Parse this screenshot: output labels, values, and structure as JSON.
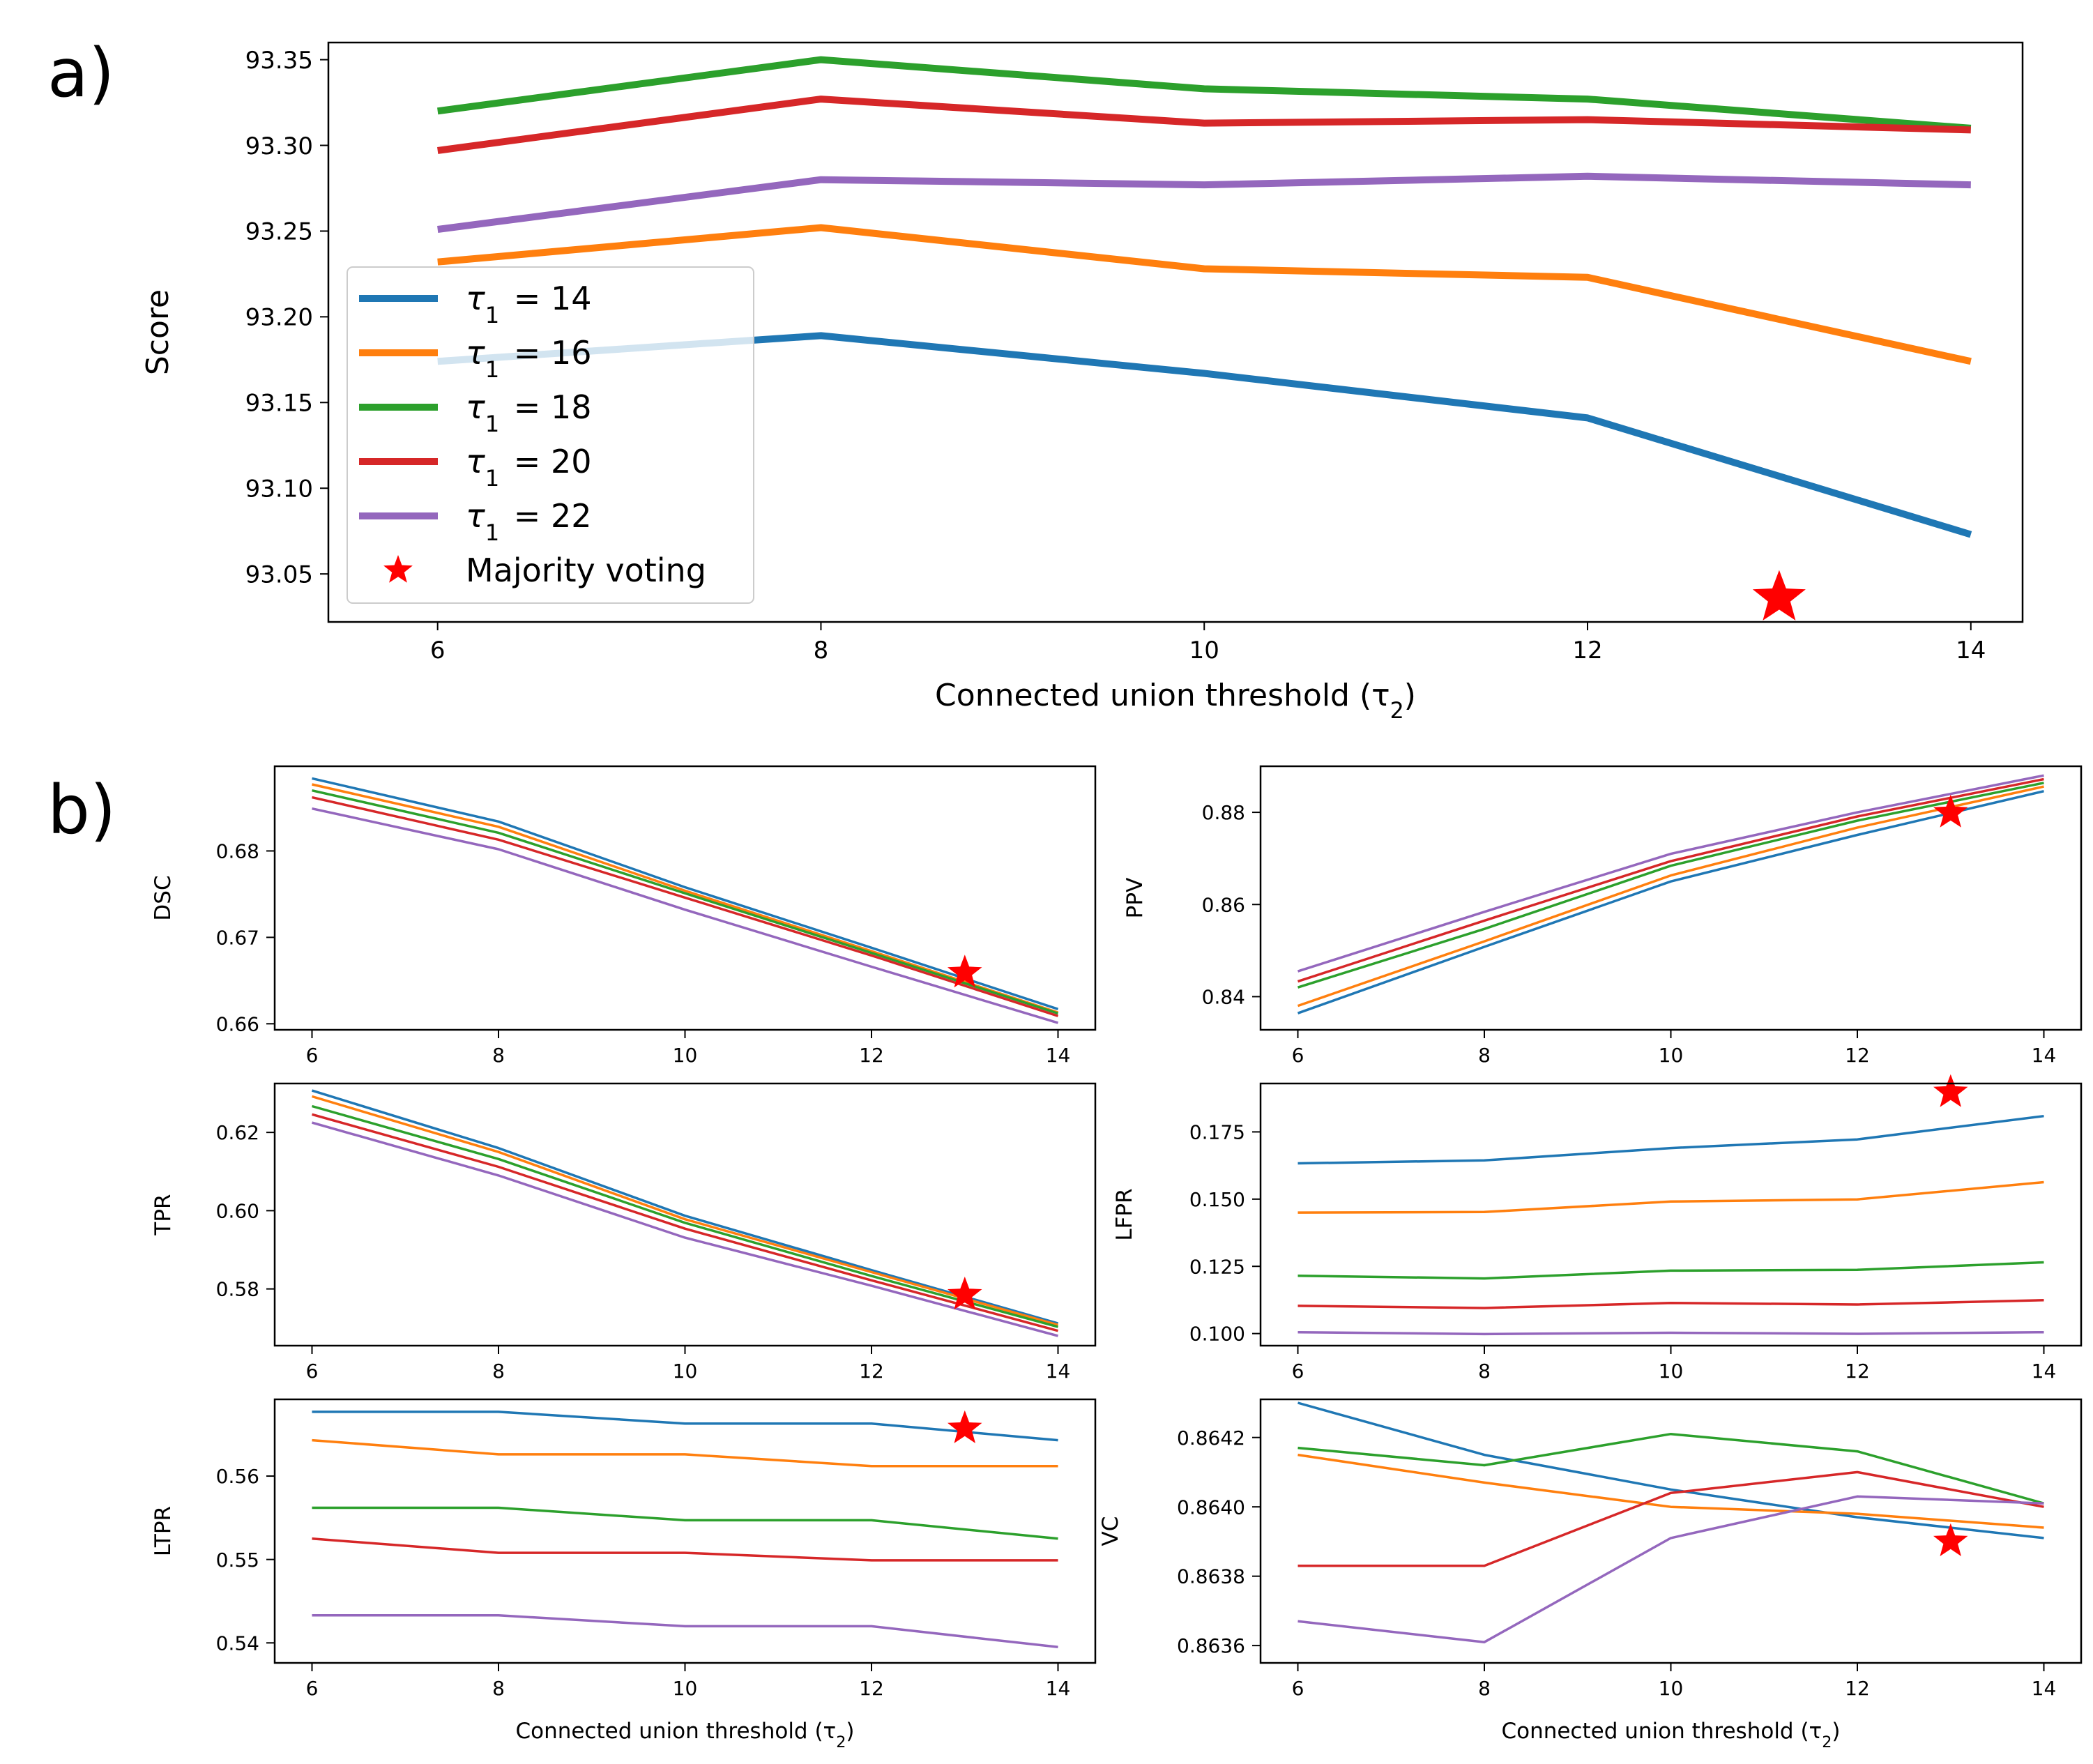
{
  "figure_labels": {
    "a": "a)",
    "b": "b)"
  },
  "legend": {
    "entries": [
      "τ1 = 14",
      "τ1 = 16",
      "τ1 = 18",
      "τ1 = 20",
      "τ1 = 22"
    ],
    "marker_entry": "Majority voting"
  },
  "colors": {
    "tau14": "#1f77b4",
    "tau16": "#ff7f0e",
    "tau18": "#2ca02c",
    "tau20": "#d62728",
    "tau22": "#9467bd",
    "majority": "#ff0000"
  },
  "chart_data": [
    {
      "id": "a",
      "type": "line",
      "title": "",
      "xlabel": "Connected union threshold (τ2)",
      "ylabel": "Score",
      "x": [
        6,
        8,
        10,
        12,
        14
      ],
      "xlim": [
        5.43,
        14.27
      ],
      "ylim": [
        93.022,
        93.36
      ],
      "xticks": [
        6,
        8,
        10,
        12,
        14
      ],
      "yticks": [
        93.05,
        93.1,
        93.15,
        93.2,
        93.25,
        93.3,
        93.35
      ],
      "ytick_decimals": 2,
      "series": [
        {
          "name": "τ1 = 14",
          "values": [
            93.174,
            93.189,
            93.167,
            93.141,
            93.073
          ]
        },
        {
          "name": "τ1 = 16",
          "values": [
            93.232,
            93.252,
            93.228,
            93.223,
            93.174
          ]
        },
        {
          "name": "τ1 = 18",
          "values": [
            93.32,
            93.35,
            93.333,
            93.327,
            93.31
          ]
        },
        {
          "name": "τ1 = 20",
          "values": [
            93.297,
            93.327,
            93.313,
            93.315,
            93.309
          ]
        },
        {
          "name": "τ1 = 22",
          "values": [
            93.251,
            93.28,
            93.277,
            93.282,
            93.277
          ]
        }
      ],
      "majority_voting": {
        "x": 13,
        "y": 93.036
      },
      "legend_position": "center-left"
    },
    {
      "id": "dsc",
      "type": "line",
      "xlabel": "",
      "ylabel": "DSC",
      "x": [
        6,
        8,
        10,
        12,
        14
      ],
      "xlim": [
        5.6,
        14.4
      ],
      "ylim": [
        0.6593,
        0.6898
      ],
      "xticks": [
        6,
        8,
        10,
        12,
        14
      ],
      "yticks": [
        0.66,
        0.67,
        0.68
      ],
      "ytick_decimals": 2,
      "series": [
        {
          "name": "τ1 = 14",
          "values": [
            0.6884,
            0.6834,
            0.6758,
            0.6688,
            0.6617
          ]
        },
        {
          "name": "τ1 = 16",
          "values": [
            0.6877,
            0.6828,
            0.6754,
            0.6684,
            0.6613
          ]
        },
        {
          "name": "τ1 = 18",
          "values": [
            0.687,
            0.6821,
            0.6751,
            0.6682,
            0.6612
          ]
        },
        {
          "name": "τ1 = 20",
          "values": [
            0.6862,
            0.6813,
            0.6746,
            0.6679,
            0.6609
          ]
        },
        {
          "name": "τ1 = 22",
          "values": [
            0.6849,
            0.6802,
            0.6732,
            0.6666,
            0.6601
          ]
        }
      ],
      "majority_voting": {
        "x": 13,
        "y": 0.6659
      }
    },
    {
      "id": "ppv",
      "type": "line",
      "xlabel": "",
      "ylabel": "PPV",
      "x": [
        6,
        8,
        10,
        12,
        14
      ],
      "xlim": [
        5.6,
        14.4
      ],
      "ylim": [
        0.8328,
        0.89
      ],
      "xticks": [
        6,
        8,
        10,
        12,
        14
      ],
      "yticks": [
        0.84,
        0.86,
        0.88
      ],
      "ytick_decimals": 2,
      "series": [
        {
          "name": "τ1 = 14",
          "values": [
            0.8364,
            0.8508,
            0.865,
            0.8751,
            0.8846
          ]
        },
        {
          "name": "τ1 = 16",
          "values": [
            0.838,
            0.852,
            0.8663,
            0.8767,
            0.8856
          ]
        },
        {
          "name": "τ1 = 18",
          "values": [
            0.842,
            0.8547,
            0.8684,
            0.8782,
            0.8864
          ]
        },
        {
          "name": "τ1 = 20",
          "values": [
            0.8433,
            0.8565,
            0.8694,
            0.8791,
            0.8872
          ]
        },
        {
          "name": "τ1 = 22",
          "values": [
            0.8455,
            0.8584,
            0.871,
            0.88,
            0.888
          ]
        }
      ],
      "majority_voting": {
        "x": 13,
        "y": 0.8799
      }
    },
    {
      "id": "tpr",
      "type": "line",
      "xlabel": "",
      "ylabel": "TPR",
      "x": [
        6,
        8,
        10,
        12,
        14
      ],
      "xlim": [
        5.6,
        14.4
      ],
      "ylim": [
        0.5655,
        0.6325
      ],
      "xticks": [
        6,
        8,
        10,
        12,
        14
      ],
      "yticks": [
        0.58,
        0.6,
        0.62
      ],
      "ytick_decimals": 2,
      "series": [
        {
          "name": "τ1 = 14",
          "values": [
            0.6307,
            0.616,
            0.5987,
            0.5848,
            0.5712
          ]
        },
        {
          "name": "τ1 = 16",
          "values": [
            0.6292,
            0.615,
            0.5978,
            0.5843,
            0.5708
          ]
        },
        {
          "name": "τ1 = 18",
          "values": [
            0.6267,
            0.6132,
            0.5969,
            0.5833,
            0.5703
          ]
        },
        {
          "name": "τ1 = 20",
          "values": [
            0.6246,
            0.6112,
            0.5954,
            0.5822,
            0.5693
          ]
        },
        {
          "name": "τ1 = 22",
          "values": [
            0.6225,
            0.609,
            0.5931,
            0.5808,
            0.568
          ]
        }
      ],
      "majority_voting": {
        "x": 13,
        "y": 0.5785
      }
    },
    {
      "id": "lfpr",
      "type": "line",
      "xlabel": "",
      "ylabel": "LFPR",
      "x": [
        6,
        8,
        10,
        12,
        14
      ],
      "xlim": [
        5.6,
        14.4
      ],
      "ylim": [
        0.0955,
        0.193
      ],
      "xticks": [
        6,
        8,
        10,
        12,
        14
      ],
      "yticks": [
        0.1,
        0.125,
        0.15,
        0.175
      ],
      "ytick_decimals": 3,
      "series": [
        {
          "name": "τ1 = 14",
          "values": [
            0.1633,
            0.1644,
            0.169,
            0.1722,
            0.1809
          ]
        },
        {
          "name": "τ1 = 16",
          "values": [
            0.145,
            0.1452,
            0.1491,
            0.1499,
            0.1563
          ]
        },
        {
          "name": "τ1 = 18",
          "values": [
            0.1215,
            0.1205,
            0.1234,
            0.1237,
            0.1265
          ]
        },
        {
          "name": "τ1 = 20",
          "values": [
            0.1103,
            0.1095,
            0.1114,
            0.1108,
            0.1124
          ]
        },
        {
          "name": "τ1 = 22",
          "values": [
            0.1005,
            0.0998,
            0.1003,
            0.0999,
            0.1005
          ]
        }
      ],
      "majority_voting": {
        "x": 13,
        "y": 0.1897
      }
    },
    {
      "id": "ltpr",
      "type": "line",
      "xlabel": "Connected union threshold (τ2)",
      "ylabel": "LTPR",
      "x": [
        6,
        8,
        10,
        12,
        14
      ],
      "xlim": [
        5.6,
        14.4
      ],
      "ylim": [
        0.5376,
        0.5692
      ],
      "xticks": [
        6,
        8,
        10,
        12,
        14
      ],
      "yticks": [
        0.54,
        0.55,
        0.56
      ],
      "ytick_decimals": 2,
      "series": [
        {
          "name": "τ1 = 14",
          "values": [
            0.5677,
            0.5677,
            0.5663,
            0.5663,
            0.5643
          ]
        },
        {
          "name": "τ1 = 16",
          "values": [
            0.5643,
            0.5626,
            0.5626,
            0.5612,
            0.5612
          ]
        },
        {
          "name": "τ1 = 18",
          "values": [
            0.5562,
            0.5562,
            0.5547,
            0.5547,
            0.5525
          ]
        },
        {
          "name": "τ1 = 20",
          "values": [
            0.5525,
            0.5508,
            0.5508,
            0.5499,
            0.5499
          ]
        },
        {
          "name": "τ1 = 22",
          "values": [
            0.5433,
            0.5433,
            0.542,
            0.542,
            0.5395
          ]
        }
      ],
      "majority_voting": {
        "x": 13,
        "y": 0.5657
      }
    },
    {
      "id": "vc",
      "type": "line",
      "xlabel": "Connected union threshold (τ2)",
      "ylabel": "VC",
      "x": [
        6,
        8,
        10,
        12,
        14
      ],
      "xlim": [
        5.6,
        14.4
      ],
      "ylim": [
        0.86355,
        0.86431
      ],
      "xticks": [
        6,
        8,
        10,
        12,
        14
      ],
      "yticks": [
        0.8636,
        0.8638,
        0.864,
        0.8642
      ],
      "ytick_decimals": 4,
      "series": [
        {
          "name": "τ1 = 14",
          "values": [
            0.8643,
            0.86415,
            0.86405,
            0.86397,
            0.86391
          ]
        },
        {
          "name": "τ1 = 16",
          "values": [
            0.86415,
            0.86407,
            0.864,
            0.86398,
            0.86394
          ]
        },
        {
          "name": "τ1 = 18",
          "values": [
            0.86417,
            0.86412,
            0.86421,
            0.86416,
            0.86401
          ]
        },
        {
          "name": "τ1 = 20",
          "values": [
            0.86383,
            0.86383,
            0.86404,
            0.8641,
            0.864
          ]
        },
        {
          "name": "τ1 = 22",
          "values": [
            0.86367,
            0.86361,
            0.86391,
            0.86403,
            0.86401
          ]
        }
      ],
      "majority_voting": {
        "x": 13,
        "y": 0.8639
      }
    }
  ]
}
